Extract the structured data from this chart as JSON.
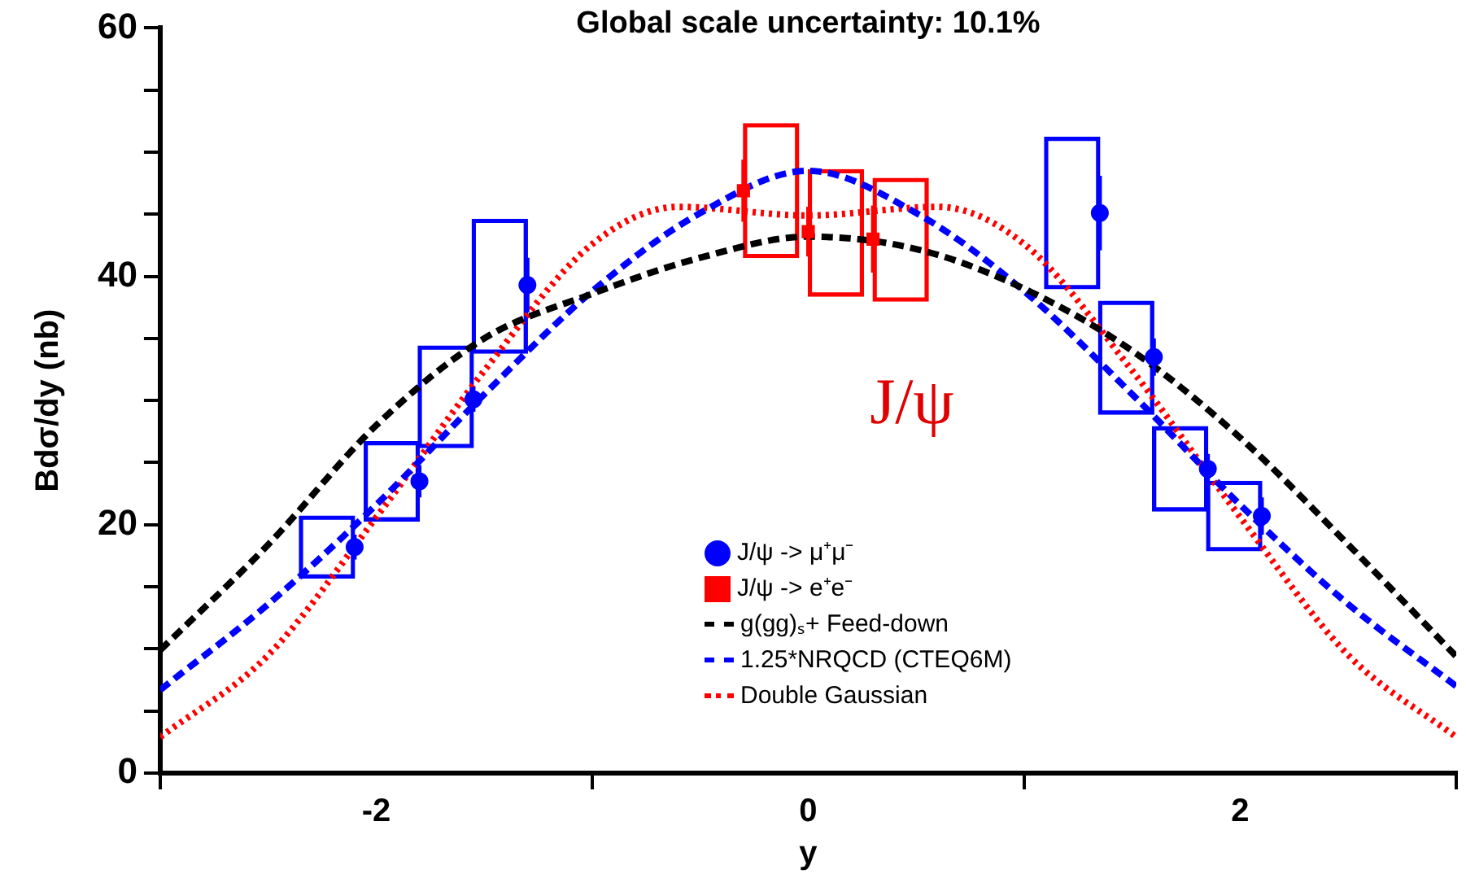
{
  "chart_data": {
    "type": "scatter",
    "xlabel": "y",
    "ylabel": "Bdσ/dy (nb)",
    "xlim": [
      -3,
      3
    ],
    "xticks": [
      -2,
      0,
      2
    ],
    "ylim": [
      0,
      60
    ],
    "yticks": [
      0,
      {
        "value": 5,
        "label": null
      },
      {
        "value": 10,
        "label": null
      },
      {
        "value": 15,
        "label": null
      },
      20,
      {
        "value": 25,
        "label": null
      },
      {
        "value": 30,
        "label": null
      },
      {
        "value": 35,
        "label": null
      },
      40,
      {
        "value": 45,
        "label": null
      },
      {
        "value": 50,
        "label": null
      },
      {
        "value": 55,
        "label": null
      },
      60
    ],
    "grid": false,
    "legend": "bottom",
    "annotations": [
      "Global scale uncertainty: 10.1%",
      "J/ψ"
    ],
    "series": [
      {
        "type": "bar",
        "color": "#0000ff",
        "x": [
          -2.1,
          -1.8,
          -1.55,
          -1.3,
          1.35,
          1.6,
          1.85,
          2.1
        ],
        "base": [
          15.7,
          20.3,
          26.2,
          33.8,
          39.0,
          28.9,
          21.1,
          17.9
        ],
        "values": [
          5.0,
          6.4,
          8.2,
          10.8,
          12.2,
          9.1,
          6.8,
          5.6
        ]
      },
      {
        "type": "bar",
        "color": "#ff0000",
        "x": [
          -0.3,
          0,
          0.3
        ],
        "base": [
          41.5,
          38.4,
          38.0
        ],
        "values": [
          10.8,
          10.2,
          9.9
        ]
      },
      {
        "name": "J/ψ -> μ⁺μ⁻",
        "color": "#0000ff",
        "marker": "circle",
        "x": [
          -2.1,
          -1.8,
          -1.55,
          -1.3,
          1.35,
          1.6,
          1.85,
          2.1
        ],
        "values": [
          18.2,
          23.5,
          30.1,
          39.3,
          45.1,
          33.5,
          24.5,
          20.7
        ],
        "errors": [
          1.0,
          1.3,
          1.0,
          2.2,
          3.0,
          1.5,
          1.2,
          1.5
        ]
      },
      {
        "name": "J/ψ -> e⁺e⁻",
        "color": "#ff0000",
        "marker": "square",
        "x": [
          -0.3,
          0,
          0.3
        ],
        "values": [
          46.9,
          43.6,
          43.0
        ],
        "errors": [
          2.5,
          2.0,
          2.7
        ]
      },
      {
        "type": "line",
        "name": "g(gg)ₛ+ Feed-down",
        "color": "#000000",
        "line_style": "dashed",
        "marker": "none",
        "x": [
          -3,
          -2.5,
          -2,
          -1.5,
          -1,
          -0.5,
          0,
          0.5,
          1,
          1.5,
          2,
          2.5,
          3
        ],
        "values": [
          9.9,
          18.4,
          28.0,
          35.0,
          38.6,
          41.5,
          43.2,
          42.2,
          39.0,
          34.0,
          27.0,
          18.4,
          9.4
        ]
      },
      {
        "type": "line",
        "name": "1.25*NRQCD (CTEQ6M)",
        "color": "#0000ff",
        "line_style": "dashed",
        "marker": "none",
        "x": [
          -3,
          -2.5,
          -2,
          -1.5,
          -1,
          -0.5,
          0,
          0.5,
          1,
          1.5,
          2,
          2.5,
          3
        ],
        "values": [
          6.7,
          13.6,
          21.6,
          30.5,
          38.8,
          45.1,
          48.5,
          45.1,
          38.8,
          30.5,
          21.6,
          13.6,
          7.0
        ]
      },
      {
        "type": "line",
        "name": "Double Gaussian",
        "color": "#ff0000",
        "line_style": "dotted",
        "marker": "none",
        "x": [
          -3,
          -2.5,
          -2,
          -1.5,
          -1,
          -0.6,
          0,
          0.6,
          1,
          1.5,
          2,
          2.5,
          3
        ],
        "values": [
          2.9,
          9.5,
          20.6,
          32.4,
          42.6,
          45.6,
          44.9,
          45.6,
          42.6,
          32.4,
          20.6,
          9.5,
          2.9
        ]
      }
    ]
  }
}
